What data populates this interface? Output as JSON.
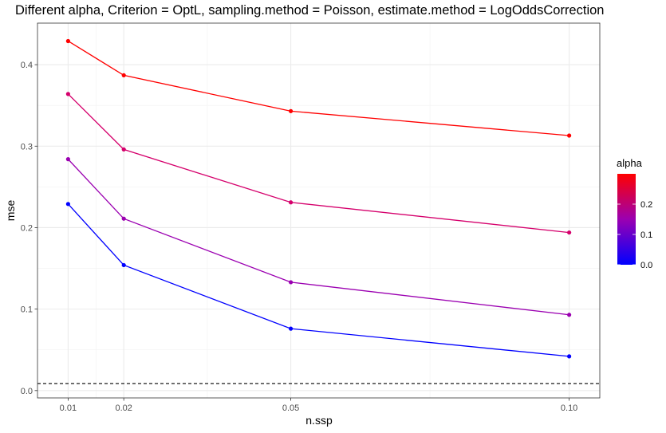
{
  "chart_data": {
    "type": "line",
    "title": "Different alpha, Criterion = OptL, sampling.method = Poisson, estimate.method = LogOddsCorrection",
    "xlabel": "n.ssp",
    "ylabel": "mse",
    "x": [
      0.01,
      0.02,
      0.05,
      0.1
    ],
    "x_tick_labels": [
      "0.01",
      "0.02",
      "0.05",
      "0.10"
    ],
    "xlim": [
      0.0045,
      0.1055
    ],
    "ylim": [
      -0.009,
      0.451
    ],
    "y_ticks": [
      0.0,
      0.1,
      0.2,
      0.3,
      0.4
    ],
    "y_tick_labels": [
      "0.0",
      "0.1",
      "0.2",
      "0.3",
      "0.4"
    ],
    "series": [
      {
        "alpha": 0.0,
        "color": "#0000ff",
        "values": [
          0.229,
          0.154,
          0.076,
          0.042
        ]
      },
      {
        "alpha": 0.1,
        "color": "#9b00b1",
        "values": [
          0.284,
          0.211,
          0.133,
          0.093
        ]
      },
      {
        "alpha": 0.2,
        "color": "#d5006c",
        "values": [
          0.364,
          0.296,
          0.231,
          0.194
        ]
      },
      {
        "alpha": 0.3,
        "color": "#ff0000",
        "values": [
          0.429,
          0.387,
          0.343,
          0.313
        ]
      }
    ],
    "reference_line": {
      "y": 0.0087,
      "style": "dashed",
      "color": "#000000"
    },
    "legend": {
      "title": "alpha",
      "position": "right",
      "type": "colorbar",
      "range": [
        0.0,
        0.3
      ],
      "ticks": [
        0.0,
        0.1,
        0.2
      ],
      "tick_labels": [
        "0.0",
        "0.1",
        "0.2"
      ],
      "low_color": "#0000ff",
      "high_color": "#ff0000"
    },
    "grid": true,
    "theme": "bw"
  }
}
